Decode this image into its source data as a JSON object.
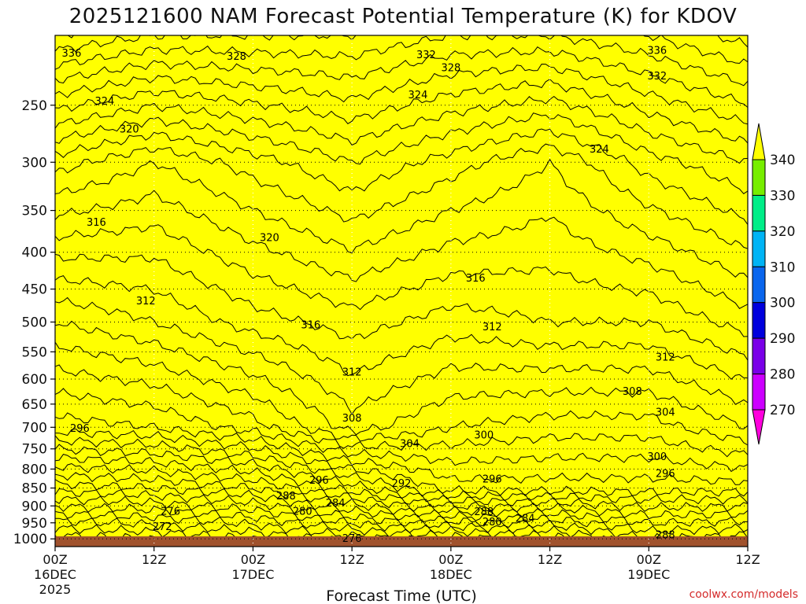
{
  "chart_data": {
    "type": "contour",
    "title": "2025121600 NAM Forecast Potential Temperature (K) for KDOV",
    "xlabel": "Forecast Time (UTC)",
    "ylabel": "",
    "credit": "coolwx.com/models",
    "y_axis": {
      "scale": "log-pressure",
      "range_hPa": [
        200,
        1025
      ],
      "ticks": [
        250,
        300,
        350,
        400,
        450,
        500,
        550,
        600,
        650,
        700,
        750,
        800,
        850,
        900,
        950,
        1000
      ]
    },
    "x_axis": {
      "range_hours": [
        0,
        84
      ],
      "ticks": [
        {
          "hour": 0,
          "label": "00Z",
          "date": "16DEC",
          "year": "2025"
        },
        {
          "hour": 12,
          "label": "12Z",
          "date": "",
          "year": ""
        },
        {
          "hour": 24,
          "label": "00Z",
          "date": "17DEC",
          "year": ""
        },
        {
          "hour": 36,
          "label": "12Z",
          "date": "",
          "year": ""
        },
        {
          "hour": 48,
          "label": "00Z",
          "date": "18DEC",
          "year": ""
        },
        {
          "hour": 60,
          "label": "12Z",
          "date": "",
          "year": ""
        },
        {
          "hour": 72,
          "label": "00Z",
          "date": "19DEC",
          "year": ""
        },
        {
          "hour": 84,
          "label": "12Z",
          "date": "",
          "year": ""
        }
      ]
    },
    "colorbar": {
      "levels": [
        270,
        280,
        290,
        300,
        310,
        320,
        330,
        340
      ],
      "labels": [
        "270",
        "280",
        "290",
        "300",
        "310",
        "320",
        "330",
        "340"
      ],
      "band_colors": [
        "#ff00dd",
        "#cc00ff",
        "#7a00e8",
        "#0000dd",
        "#0a66ee",
        "#00b4f5",
        "#00ee88",
        "#77ee00",
        "#ffff00"
      ]
    },
    "contour_interval_K": 2,
    "series": [
      {
        "name": "theta_1000hPa_K",
        "x": [
          0,
          12,
          24,
          36,
          48,
          60,
          72,
          84
        ],
        "values": [
          269,
          270,
          272,
          275,
          277,
          279,
          284,
          283
        ]
      },
      {
        "name": "theta_850hPa_K",
        "x": [
          0,
          12,
          24,
          36,
          48,
          60,
          72,
          84
        ],
        "values": [
          283,
          284,
          286,
          291,
          297,
          297,
          297,
          297
        ]
      },
      {
        "name": "theta_700hPa_K",
        "x": [
          0,
          12,
          24,
          36,
          48,
          60,
          72,
          84
        ],
        "values": [
          297,
          298,
          301,
          307,
          304,
          303,
          303,
          306
        ]
      },
      {
        "name": "theta_500hPa_K",
        "x": [
          0,
          12,
          24,
          36,
          48,
          60,
          72,
          84
        ],
        "values": [
          306,
          308,
          311,
          313,
          311,
          312,
          312,
          315
        ]
      },
      {
        "name": "theta_300hPa_K",
        "x": [
          0,
          12,
          24,
          36,
          48,
          60,
          72,
          84
        ],
        "values": [
          321,
          318,
          321,
          324,
          321,
          318,
          323,
          326
        ]
      },
      {
        "name": "theta_200hPa_K",
        "x": [
          0,
          12,
          24,
          36,
          48,
          60,
          72,
          84
        ],
        "values": [
          338,
          336,
          336,
          336,
          334,
          334,
          336,
          339
        ]
      }
    ],
    "annotations": [
      {
        "text": "336",
        "hour": 2,
        "hPa": 212
      },
      {
        "text": "328",
        "hour": 22,
        "hPa": 214
      },
      {
        "text": "332",
        "hour": 45,
        "hPa": 213
      },
      {
        "text": "328",
        "hour": 48,
        "hPa": 222
      },
      {
        "text": "332",
        "hour": 73,
        "hPa": 228
      },
      {
        "text": "336",
        "hour": 73,
        "hPa": 210
      },
      {
        "text": "324",
        "hour": 6,
        "hPa": 247
      },
      {
        "text": "320",
        "hour": 9,
        "hPa": 270
      },
      {
        "text": "324",
        "hour": 44,
        "hPa": 242
      },
      {
        "text": "324",
        "hour": 66,
        "hPa": 288
      },
      {
        "text": "316",
        "hour": 5,
        "hPa": 364
      },
      {
        "text": "320",
        "hour": 26,
        "hPa": 382
      },
      {
        "text": "316",
        "hour": 51,
        "hPa": 435
      },
      {
        "text": "312",
        "hour": 11,
        "hPa": 468
      },
      {
        "text": "316",
        "hour": 31,
        "hPa": 505
      },
      {
        "text": "312",
        "hour": 53,
        "hPa": 508
      },
      {
        "text": "312",
        "hour": 74,
        "hPa": 560
      },
      {
        "text": "312",
        "hour": 36,
        "hPa": 587
      },
      {
        "text": "308",
        "hour": 70,
        "hPa": 625
      },
      {
        "text": "304",
        "hour": 74,
        "hPa": 668
      },
      {
        "text": "308",
        "hour": 36,
        "hPa": 680
      },
      {
        "text": "300",
        "hour": 52,
        "hPa": 718
      },
      {
        "text": "304",
        "hour": 43,
        "hPa": 738
      },
      {
        "text": "296",
        "hour": 3,
        "hPa": 703
      },
      {
        "text": "300",
        "hour": 73,
        "hPa": 770
      },
      {
        "text": "296",
        "hour": 32,
        "hPa": 830
      },
      {
        "text": "292",
        "hour": 42,
        "hPa": 838
      },
      {
        "text": "296",
        "hour": 53,
        "hPa": 827
      },
      {
        "text": "296",
        "hour": 74,
        "hPa": 812
      },
      {
        "text": "288",
        "hour": 28,
        "hPa": 873
      },
      {
        "text": "284",
        "hour": 34,
        "hPa": 893
      },
      {
        "text": "280",
        "hour": 30,
        "hPa": 916
      },
      {
        "text": "276",
        "hour": 14,
        "hPa": 916
      },
      {
        "text": "288",
        "hour": 52,
        "hPa": 918
      },
      {
        "text": "280",
        "hour": 53,
        "hPa": 948
      },
      {
        "text": "284",
        "hour": 57,
        "hPa": 938
      },
      {
        "text": "272",
        "hour": 13,
        "hPa": 962
      },
      {
        "text": "276",
        "hour": 36,
        "hPa": 1000
      },
      {
        "text": "288",
        "hour": 74,
        "hPa": 988
      }
    ]
  }
}
